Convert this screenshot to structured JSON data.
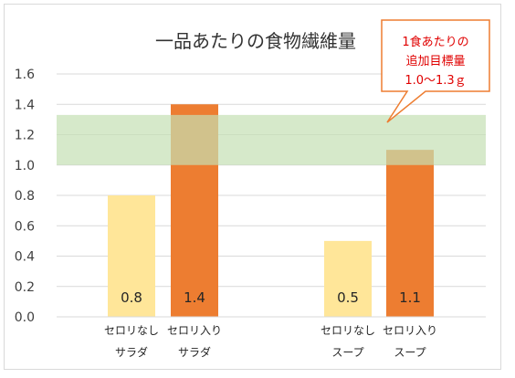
{
  "chart_data": {
    "type": "bar",
    "title": "一品あたりの食物繊維量",
    "ylim": [
      0,
      1.6
    ],
    "yticks": [
      "0.0",
      "0.2",
      "0.4",
      "0.6",
      "0.8",
      "1.0",
      "1.2",
      "1.4",
      "1.6"
    ],
    "grid": true,
    "bars": [
      {
        "label_line1": "セロリなし",
        "label_line2": "サラダ",
        "value": 0.8,
        "value_label": "0.8",
        "color": "#FFE699"
      },
      {
        "label_line1": "セロリ入り",
        "label_line2": "サラダ",
        "value": 1.4,
        "value_label": "1.4",
        "color": "#ED7D31"
      },
      {
        "label_line1": "セロリなし",
        "label_line2": "スープ",
        "value": 0.5,
        "value_label": "0.5",
        "color": "#FFE699"
      },
      {
        "label_line1": "セロリ入り",
        "label_line2": "スープ",
        "value": 1.1,
        "value_label": "1.1",
        "color": "#ED7D31"
      }
    ],
    "target_band": {
      "from": 1.0,
      "to": 1.33,
      "color": "#C5E0B4"
    },
    "callout": {
      "line1": "1食あたりの",
      "line2": "追加目標量",
      "line3": "1.0〜1.3ｇ",
      "text_color": "#E00000",
      "border_color": "#ED7D31"
    }
  }
}
